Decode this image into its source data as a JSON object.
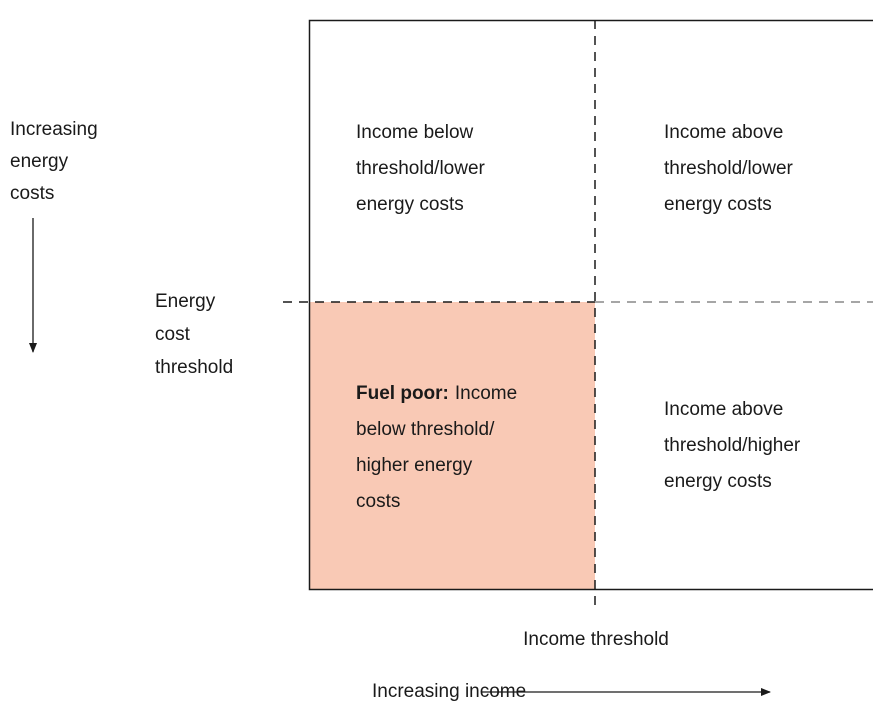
{
  "y_axis": {
    "lines": [
      "Increasing",
      "energy",
      "costs"
    ]
  },
  "y_threshold": {
    "lines": [
      "Energy",
      "cost",
      "threshold"
    ]
  },
  "quadrants": {
    "top_left": {
      "lines": [
        "Income below",
        "threshold/lower",
        "energy costs"
      ]
    },
    "top_right": {
      "lines": [
        "Income above",
        "threshold/lower",
        "energy costs"
      ]
    },
    "bottom_left": {
      "bold": "Fuel poor:",
      "lines": [
        "Income",
        "below threshold/",
        "higher energy",
        "costs"
      ]
    },
    "bottom_right": {
      "lines": [
        "Income above",
        "threshold/higher",
        "energy costs"
      ]
    }
  },
  "x_threshold": "Income threshold",
  "x_axis": "Increasing income"
}
